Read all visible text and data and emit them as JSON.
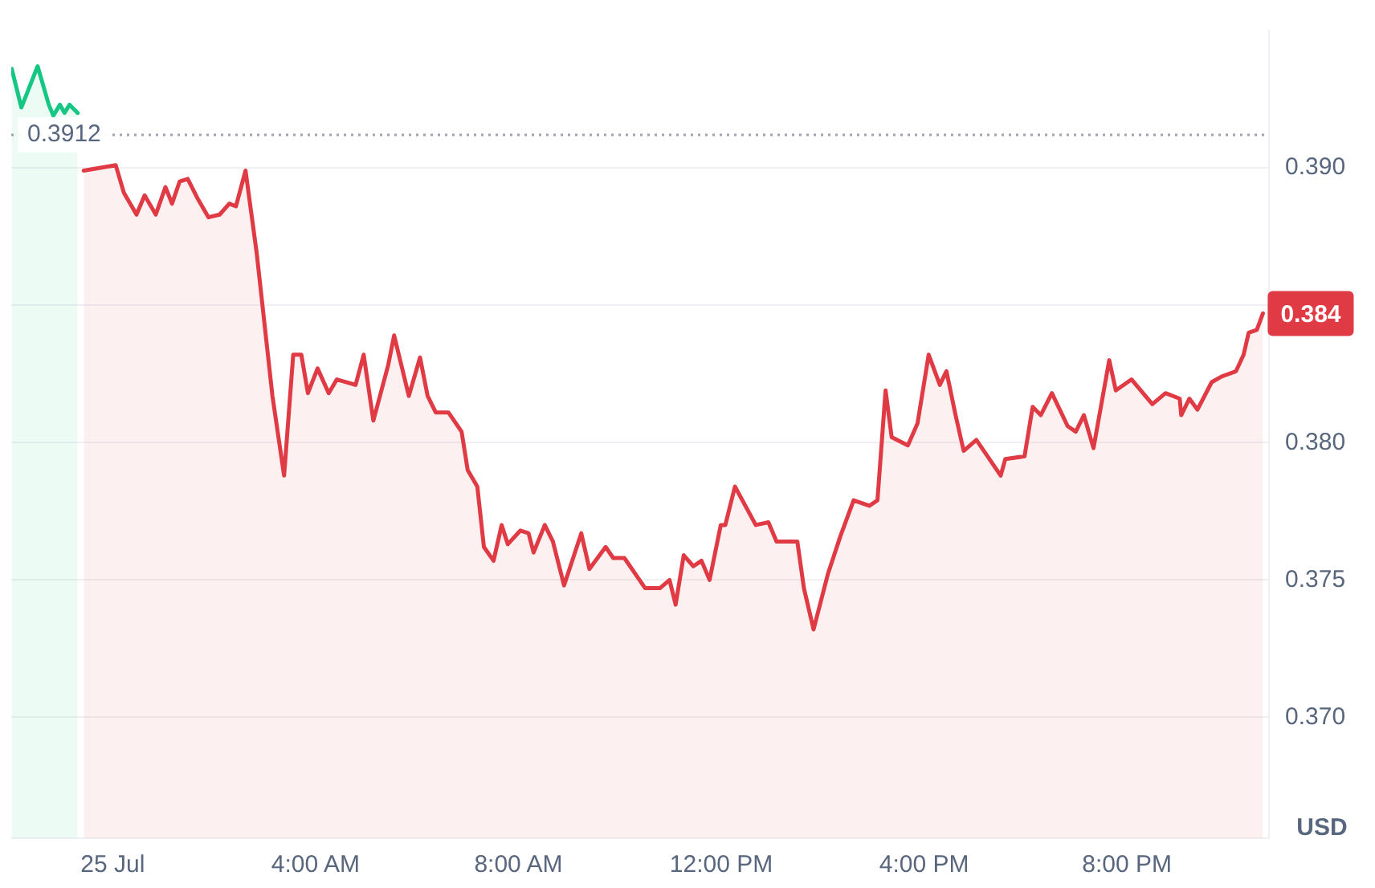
{
  "chart_data": {
    "type": "area",
    "ylabel": "USD",
    "xlim": [
      -2,
      22.8
    ],
    "ylim": [
      0.3656,
      0.395
    ],
    "xticks": [
      {
        "value": 0,
        "label": "25 Jul"
      },
      {
        "value": 4,
        "label": "4:00 AM"
      },
      {
        "value": 8,
        "label": "8:00 AM"
      },
      {
        "value": 12,
        "label": "12:00 PM"
      },
      {
        "value": 16,
        "label": "4:00 PM"
      },
      {
        "value": 20,
        "label": "8:00 PM"
      }
    ],
    "yticks": [
      {
        "value": 0.37,
        "label": "0.370"
      },
      {
        "value": 0.375,
        "label": "0.375"
      },
      {
        "value": 0.38,
        "label": "0.380"
      },
      {
        "value": 0.385,
        "label": null
      },
      {
        "value": 0.39,
        "label": "0.390"
      }
    ],
    "grid": "y",
    "legend": false,
    "marker": "none",
    "ref_lines": [
      {
        "axis": "y",
        "value": 0.3912,
        "label": "0.3912",
        "color": "#9ca3af",
        "line_style": "dotted"
      }
    ],
    "annotations": [
      {
        "text": "0.384",
        "x": 22.68,
        "y": 0.3847
      }
    ],
    "series": [
      {
        "color": "#16c784",
        "x": [
          -1.99,
          -1.8,
          -1.48,
          -1.26,
          -1.17,
          -1.04,
          -0.95,
          -0.85,
          -0.69
        ],
        "values": [
          0.3936,
          0.3922,
          0.3937,
          0.3923,
          0.3919,
          0.3923,
          0.392,
          0.3923,
          0.392
        ]
      },
      {
        "color": "#e03a45",
        "x": [
          -0.57,
          0.06,
          0.22,
          0.47,
          0.63,
          0.85,
          1.04,
          1.17,
          1.32,
          1.48,
          1.67,
          1.89,
          2.11,
          2.3,
          2.43,
          2.62,
          2.84,
          3.15,
          3.38,
          3.56,
          3.72,
          3.85,
          4.04,
          4.26,
          4.42,
          4.79,
          4.95,
          5.14,
          5.43,
          5.55,
          5.84,
          6.06,
          6.21,
          6.37,
          6.62,
          6.88,
          7.0,
          7.19,
          7.32,
          7.51,
          7.67,
          7.79,
          8.04,
          8.2,
          8.3,
          8.52,
          8.68,
          8.9,
          9.24,
          9.4,
          9.72,
          9.87,
          10.09,
          10.5,
          10.79,
          10.98,
          11.1,
          11.26,
          11.45,
          11.61,
          11.77,
          11.99,
          12.08,
          12.27,
          12.68,
          12.93,
          13.09,
          13.5,
          13.63,
          13.82,
          14.1,
          14.35,
          14.61,
          14.92,
          15.08,
          15.24,
          15.36,
          15.68,
          15.87,
          16.09,
          16.31,
          16.44,
          16.62,
          16.78,
          17.03,
          17.51,
          17.6,
          17.98,
          18.14,
          18.3,
          18.52,
          18.83,
          18.99,
          19.15,
          19.34,
          19.65,
          19.78,
          20.09,
          20.5,
          20.76,
          21.04,
          21.07,
          21.23,
          21.39,
          21.67,
          21.86,
          22.15,
          22.3,
          22.4,
          22.56,
          22.68
        ],
        "values": [
          0.3899,
          0.3901,
          0.3891,
          0.3883,
          0.389,
          0.3883,
          0.3893,
          0.3887,
          0.3895,
          0.3896,
          0.3889,
          0.3882,
          0.3883,
          0.3887,
          0.3886,
          0.3899,
          0.3869,
          0.3817,
          0.3788,
          0.3832,
          0.3832,
          0.3818,
          0.3827,
          0.3818,
          0.3823,
          0.3821,
          0.3832,
          0.3808,
          0.3828,
          0.3839,
          0.3817,
          0.3831,
          0.3817,
          0.3811,
          0.3811,
          0.3804,
          0.379,
          0.3784,
          0.3762,
          0.3757,
          0.377,
          0.3763,
          0.3768,
          0.3767,
          0.376,
          0.377,
          0.3764,
          0.3748,
          0.3767,
          0.3754,
          0.3762,
          0.3758,
          0.3758,
          0.3747,
          0.3747,
          0.375,
          0.3741,
          0.3759,
          0.3755,
          0.3757,
          0.375,
          0.377,
          0.377,
          0.3784,
          0.377,
          0.3771,
          0.3764,
          0.3764,
          0.3747,
          0.3732,
          0.3752,
          0.3766,
          0.3779,
          0.3777,
          0.3779,
          0.3819,
          0.3802,
          0.3799,
          0.3807,
          0.3832,
          0.3821,
          0.3826,
          0.381,
          0.3797,
          0.3801,
          0.3788,
          0.3794,
          0.3795,
          0.3813,
          0.381,
          0.3818,
          0.3806,
          0.3804,
          0.381,
          0.3798,
          0.383,
          0.3819,
          0.3823,
          0.3814,
          0.3818,
          0.3816,
          0.381,
          0.3816,
          0.3812,
          0.3822,
          0.3824,
          0.3826,
          0.3832,
          0.384,
          0.3841,
          0.3847
        ]
      }
    ]
  }
}
